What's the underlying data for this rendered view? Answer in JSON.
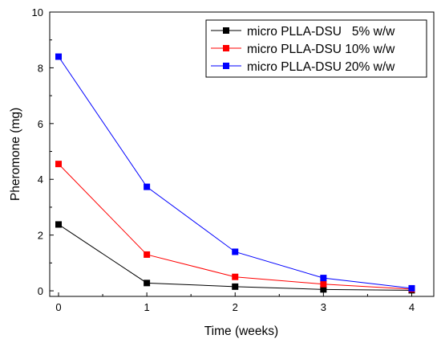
{
  "chart_data": {
    "type": "line",
    "xlabel": "Time (weeks)",
    "ylabel": "Pheromone (mg)",
    "x": [
      0,
      1,
      2,
      3,
      4
    ],
    "xlim": [
      -0.1,
      4.25
    ],
    "ylim": [
      -0.2,
      10
    ],
    "xticks": [
      0,
      1,
      2,
      3,
      4
    ],
    "yticks": [
      0,
      2,
      4,
      6,
      8,
      10
    ],
    "grid": false,
    "legend_position": "top-right",
    "series": [
      {
        "name": "micro PLLA-DSU   5% w/w",
        "color": "#000000",
        "values": [
          2.38,
          0.28,
          0.15,
          0.05,
          0.02
        ]
      },
      {
        "name": "micro PLLA-DSU 10% w/w",
        "color": "#ff0000",
        "values": [
          4.55,
          1.3,
          0.5,
          0.24,
          0.06
        ]
      },
      {
        "name": "micro PLLA-DSU 20% w/w",
        "color": "#0000ff",
        "values": [
          8.4,
          3.73,
          1.4,
          0.46,
          0.09
        ]
      }
    ]
  }
}
